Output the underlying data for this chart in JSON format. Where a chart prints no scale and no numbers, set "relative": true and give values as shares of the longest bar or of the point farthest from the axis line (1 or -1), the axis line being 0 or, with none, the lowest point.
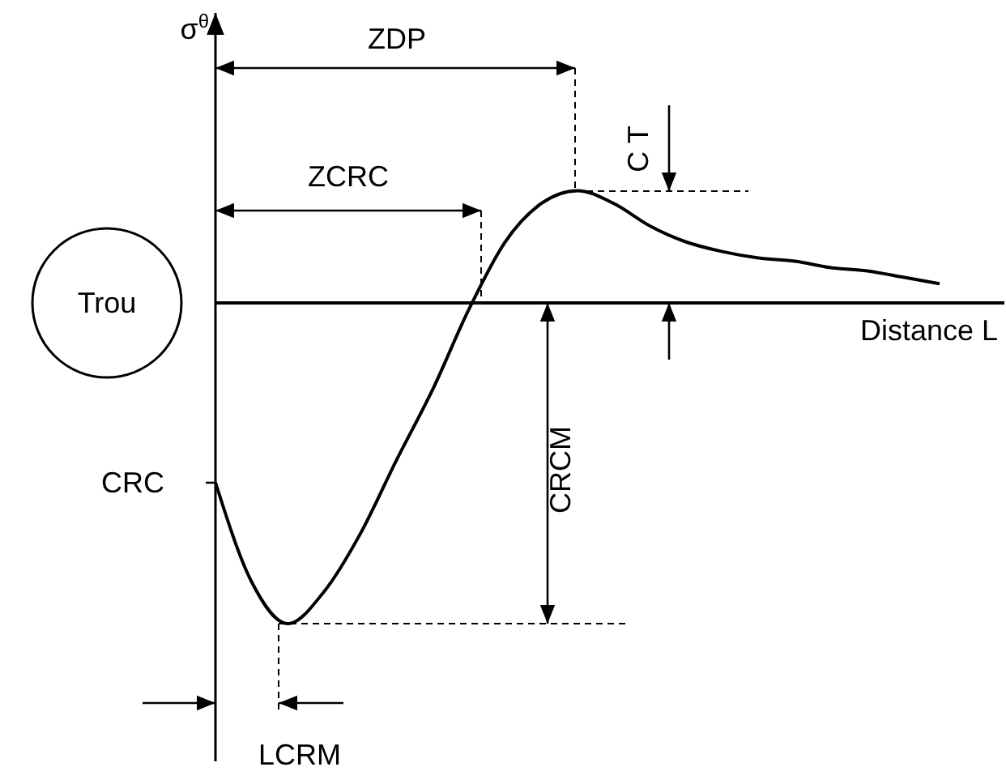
{
  "chart_data": {
    "type": "line",
    "relative": true,
    "ylabel": "σ$^{θ}$",
    "xlabel": "Distance L",
    "categories": [
      null,
      null,
      null,
      null,
      null,
      null,
      null,
      null,
      null,
      null,
      null,
      null,
      null,
      null,
      null,
      null,
      null,
      null,
      null,
      null,
      null
    ],
    "series": [
      {
        "color": "#000000",
        "values": [
          -0.56,
          -0.87,
          -1,
          -0.9,
          -0.72,
          -0.49,
          -0.27,
          -0.02,
          0.19,
          0.31,
          0.35,
          0.31,
          0.24,
          0.19,
          0.16,
          0.14,
          0.13,
          0.11,
          0.1,
          0.08,
          0.06
        ]
      }
    ],
    "annotations": [
      "ZDP",
      "ZCRC",
      "C T",
      "CRCM",
      "CRC",
      "LCRM",
      "Trou"
    ],
    "marker": "none",
    "line_style": "solid"
  }
}
